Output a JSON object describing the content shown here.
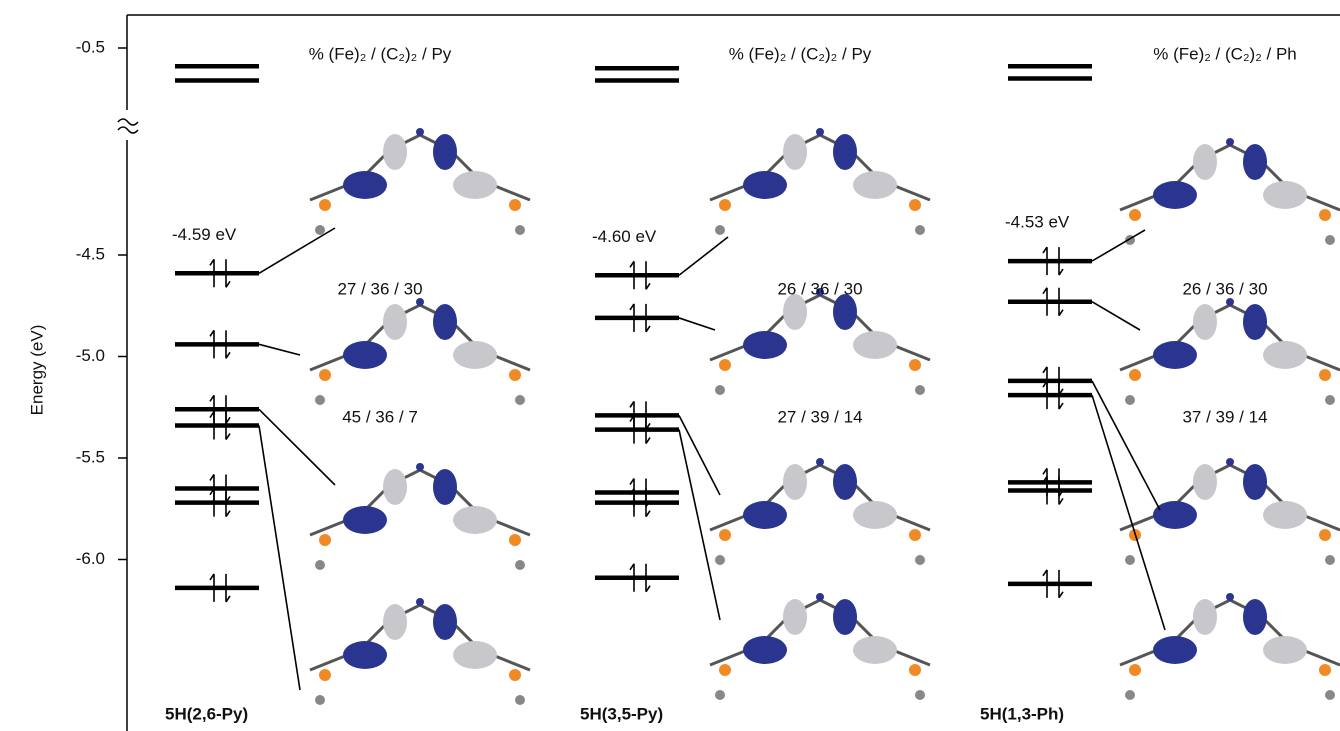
{
  "chart_data": {
    "type": "energy-levels",
    "y_title": "Energy (eV)",
    "yticks": [
      -0.5,
      -4.5,
      {
        "value": -5.0,
        "label": "-5.0"
      },
      -5.5,
      {
        "value": -6.0,
        "label": "-6.0"
      }
    ],
    "panels": [
      {
        "name": "5H(2,6-Py)",
        "header": "% (Fe)₂ / (C₂)₂ / Py",
        "homo_label": "-4.59 eV",
        "levels": [
          -0.59,
          -0.66,
          -4.59,
          -4.94,
          -5.26,
          -5.34,
          -5.65,
          -5.72,
          -6.14
        ],
        "electrons": [
          0,
          0,
          2,
          2,
          2,
          2,
          2,
          2,
          2
        ],
        "compositions": [
          "27 / 36 / 30",
          "45 / 36 / 7"
        ]
      },
      {
        "name": "5H(3,5-Py)",
        "header": "% (Fe)₂ / (C₂)₂ / Py",
        "homo_label": "-4.60 eV",
        "levels": [
          -0.6,
          -0.66,
          -4.6,
          -4.81,
          -5.29,
          -5.36,
          -5.67,
          -5.72,
          -6.09
        ],
        "electrons": [
          0,
          0,
          2,
          2,
          2,
          2,
          2,
          2,
          2
        ],
        "compositions": [
          "26 / 36 / 30",
          "27 / 39 / 14"
        ]
      },
      {
        "name": "5H(1,3-Ph)",
        "header": "% (Fe)₂ / (C₂)₂ / Ph",
        "homo_label": "-4.53 eV",
        "levels": [
          -0.59,
          -0.65,
          -4.53,
          -4.73,
          -5.12,
          -5.19,
          -5.62,
          -5.66,
          -6.12
        ],
        "electrons": [
          0,
          0,
          2,
          2,
          2,
          2,
          2,
          2,
          2
        ],
        "compositions": [
          "26 / 36 / 30",
          "37 / 39 / 14"
        ]
      }
    ]
  }
}
